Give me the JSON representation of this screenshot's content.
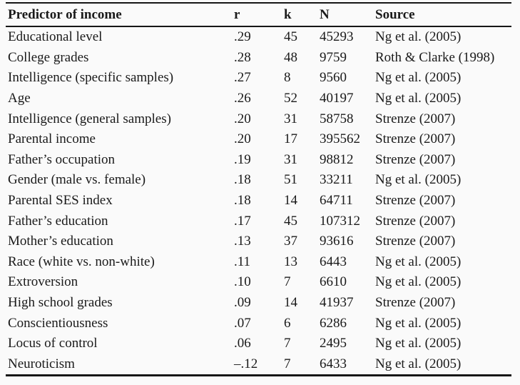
{
  "colors": {
    "background": "#fafafa",
    "text": "#1a1a1a",
    "rule": "#161616"
  },
  "table": {
    "columns": {
      "predictor": "Predictor of income",
      "r": "r",
      "k": "k",
      "n": "N",
      "source": "Source"
    },
    "rows": [
      {
        "predictor": "Educational level",
        "r": ".29",
        "k": "45",
        "n": "45293",
        "source": "Ng et al. (2005)"
      },
      {
        "predictor": "College grades",
        "r": ".28",
        "k": "48",
        "n": "9759",
        "source": "Roth & Clarke (1998)"
      },
      {
        "predictor": "Intelligence (specific samples)",
        "r": ".27",
        "k": "8",
        "n": "9560",
        "source": "Ng et al. (2005)"
      },
      {
        "predictor": "Age",
        "r": ".26",
        "k": "52",
        "n": "40197",
        "source": "Ng et al. (2005)"
      },
      {
        "predictor": "Intelligence (general samples)",
        "r": ".20",
        "k": "31",
        "n": "58758",
        "source": "Strenze (2007)"
      },
      {
        "predictor": "Parental income",
        "r": ".20",
        "k": "17",
        "n": "395562",
        "source": "Strenze (2007)"
      },
      {
        "predictor": "Father’s occupation",
        "r": ".19",
        "k": "31",
        "n": "98812",
        "source": "Strenze (2007)"
      },
      {
        "predictor": "Gender (male vs. female)",
        "r": ".18",
        "k": "51",
        "n": "33211",
        "source": "Ng et al. (2005)"
      },
      {
        "predictor": "Parental SES index",
        "r": ".18",
        "k": "14",
        "n": "64711",
        "source": "Strenze (2007)"
      },
      {
        "predictor": "Father’s education",
        "r": ".17",
        "k": "45",
        "n": "107312",
        "source": "Strenze (2007)"
      },
      {
        "predictor": "Mother’s education",
        "r": ".13",
        "k": "37",
        "n": "93616",
        "source": "Strenze (2007)"
      },
      {
        "predictor": "Race (white vs. non-white)",
        "r": ".11",
        "k": "13",
        "n": "6443",
        "source": "Ng et al. (2005)"
      },
      {
        "predictor": "Extroversion",
        "r": ".10",
        "k": "7",
        "n": "6610",
        "source": "Ng et al. (2005)"
      },
      {
        "predictor": "High school grades",
        "r": ".09",
        "k": "14",
        "n": "41937",
        "source": "Strenze (2007)"
      },
      {
        "predictor": "Conscientiousness",
        "r": ".07",
        "k": "6",
        "n": "6286",
        "source": "Ng et al. (2005)"
      },
      {
        "predictor": "Locus of control",
        "r": ".06",
        "k": "7",
        "n": "2495",
        "source": "Ng et al. (2005)"
      },
      {
        "predictor": "Neuroticism",
        "r": "–.12",
        "k": "7",
        "n": "6433",
        "source": "Ng et al. (2005)"
      }
    ]
  }
}
